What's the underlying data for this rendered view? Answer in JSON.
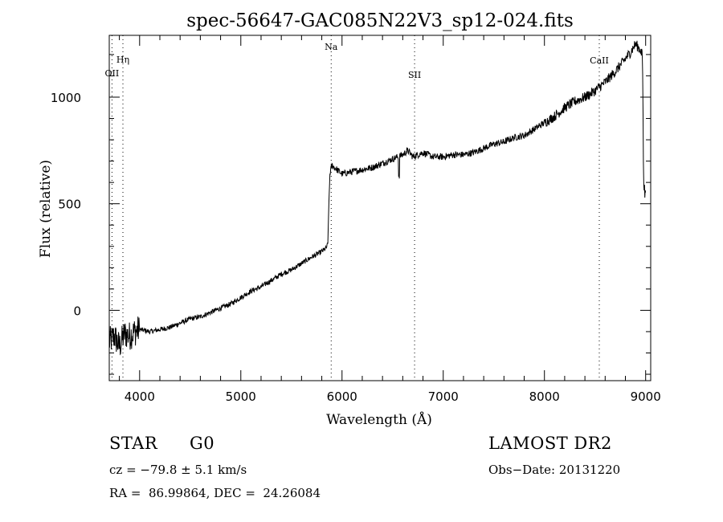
{
  "chart_data": {
    "type": "line",
    "title": "spec-56647-GAC085N22V3_sp12-024.fits",
    "xlabel": "Wavelength (Å)",
    "ylabel": "Flux (relative)",
    "xlim": [
      3700,
      9050
    ],
    "ylim": [
      -330,
      1290
    ],
    "xticks": [
      4000,
      5000,
      6000,
      7000,
      8000,
      9000
    ],
    "xtick_labels": [
      "4000",
      "5000",
      "6000",
      "7000",
      "8000",
      "9000"
    ],
    "yticks": [
      0,
      500,
      1000
    ],
    "ytick_labels": [
      "0",
      "500",
      "1000"
    ],
    "grid": false,
    "legend": "none",
    "line_color": "#000000",
    "lines": [
      {
        "label": "OII",
        "wavelength": 3727
      },
      {
        "label": "Hη",
        "wavelength": 3835
      },
      {
        "label": "Na",
        "wavelength": 5893
      },
      {
        "label": "SII",
        "wavelength": 6717
      },
      {
        "label": "CaII",
        "wavelength": 8542
      }
    ],
    "series": [
      {
        "x": [
          3700,
          3750,
          3800,
          3850,
          3900,
          3950,
          4000,
          4100,
          4200,
          4300,
          4400,
          4500,
          4600,
          4700,
          4800,
          4900,
          5000,
          5100,
          5200,
          5300,
          5400,
          5500,
          5600,
          5700,
          5780,
          5840,
          5860,
          5865,
          5880,
          5900,
          5950,
          6000,
          6100,
          6200,
          6300,
          6400,
          6500,
          6600,
          6650,
          6700,
          6800,
          6900,
          7000,
          7100,
          7200,
          7300,
          7400,
          7500,
          7600,
          7700,
          7800,
          7900,
          8000,
          8100,
          8200,
          8300,
          8400,
          8500,
          8600,
          8700,
          8800,
          8850,
          8900,
          8950,
          8970,
          8980,
          9000
        ],
        "y": [
          -150,
          -120,
          -170,
          -110,
          -120,
          -100,
          -90,
          -100,
          -90,
          -80,
          -60,
          -40,
          -30,
          -10,
          10,
          30,
          60,
          90,
          110,
          140,
          170,
          190,
          220,
          250,
          270,
          290,
          310,
          420,
          640,
          680,
          660,
          640,
          650,
          660,
          670,
          690,
          710,
          730,
          750,
          720,
          740,
          720,
          720,
          730,
          730,
          740,
          760,
          780,
          790,
          810,
          820,
          850,
          880,
          910,
          950,
          980,
          1000,
          1030,
          1070,
          1120,
          1180,
          1210,
          1250,
          1220,
          1180,
          600,
          520
        ]
      }
    ]
  },
  "footer": {
    "object_class": "STAR",
    "subclass": "G0",
    "cz": "cz = −79.8 ± 5.1 km/s",
    "coords": "RA =  86.99864, DEC =  24.26084",
    "survey": "LAMOST DR2",
    "obs_date": "Obs−Date: 20131220"
  }
}
